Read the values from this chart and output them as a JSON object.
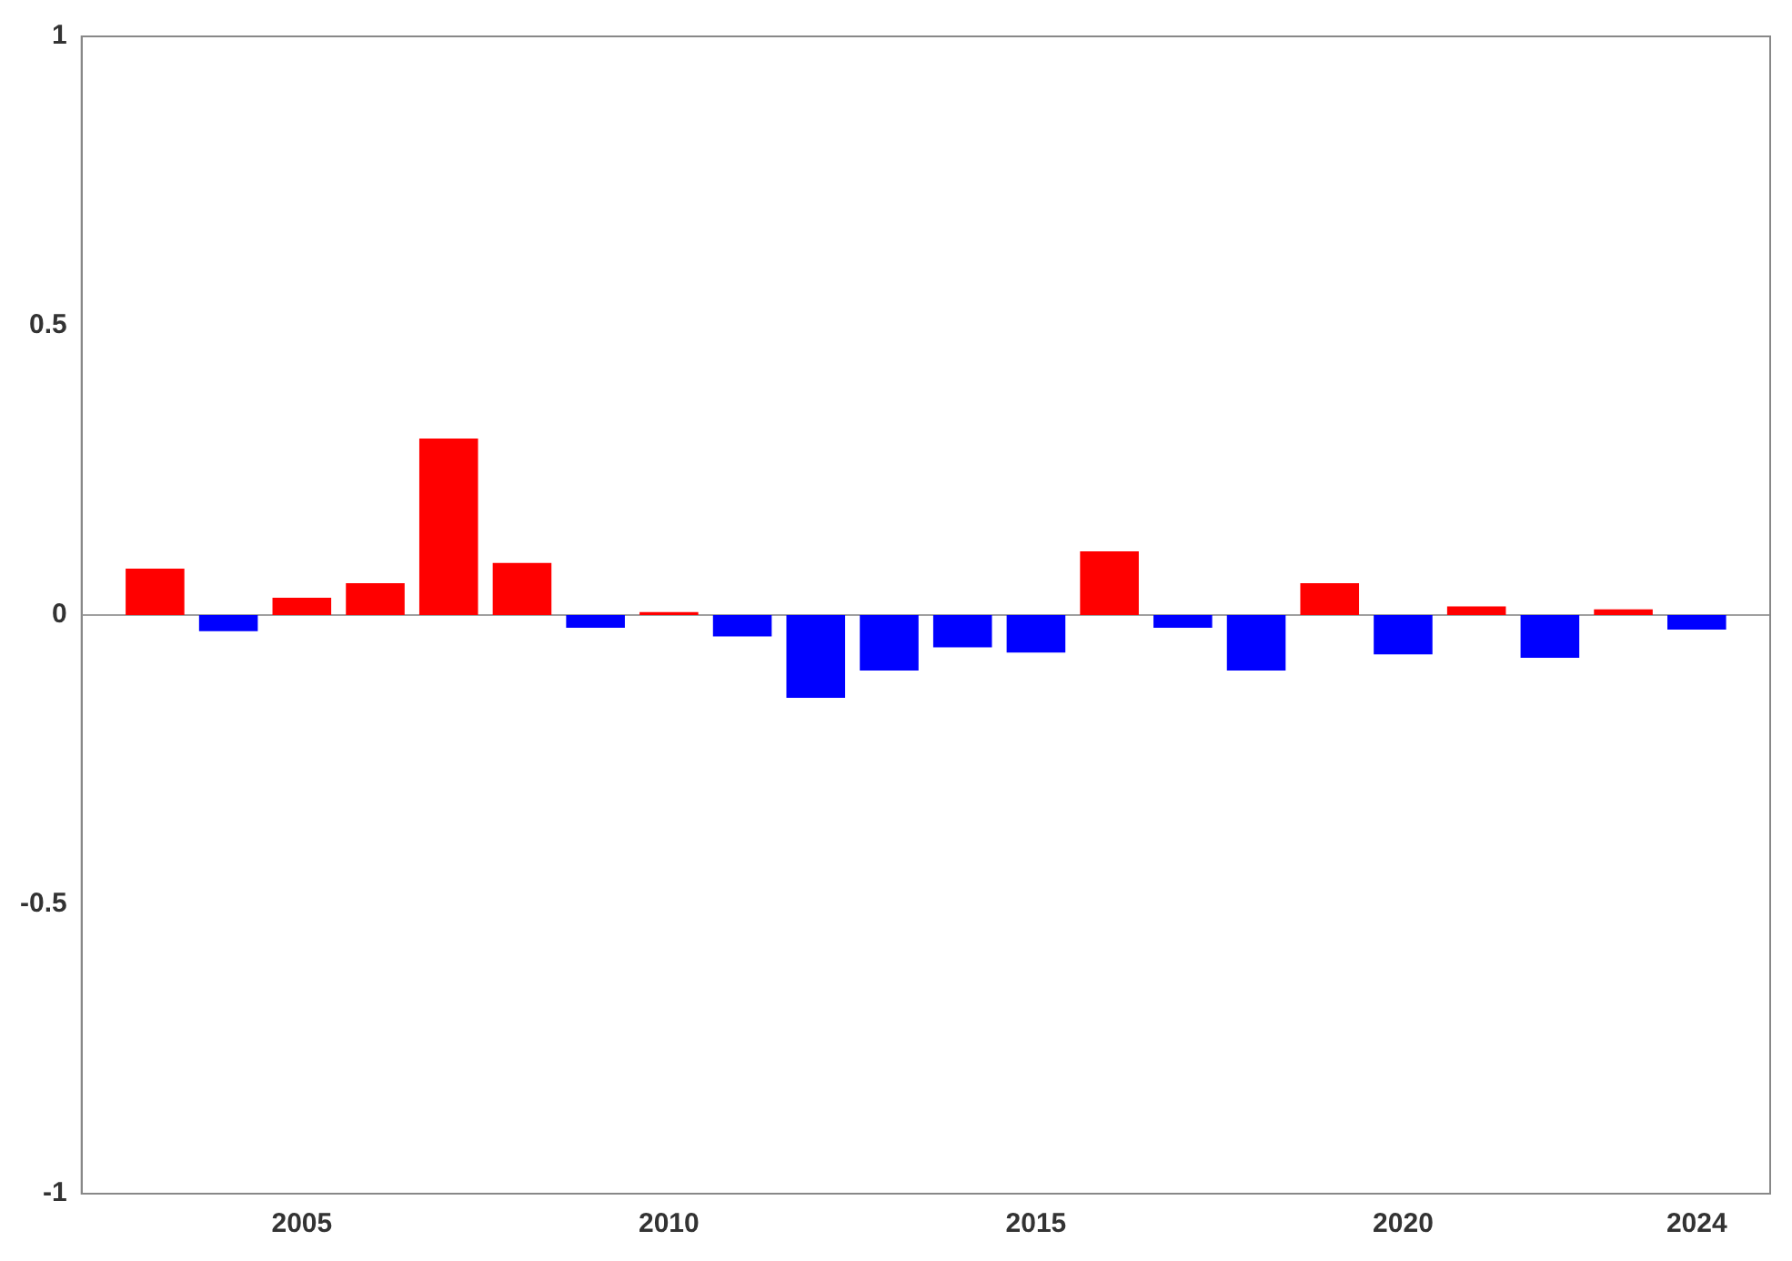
{
  "chart_data": {
    "type": "bar",
    "x": [
      2003,
      2004,
      2005,
      2006,
      2007,
      2008,
      2009,
      2010,
      2011,
      2012,
      2013,
      2014,
      2015,
      2016,
      2017,
      2018,
      2019,
      2020,
      2021,
      2022,
      2023,
      2024
    ],
    "values": [
      0.08,
      -0.028,
      0.03,
      0.055,
      0.305,
      0.09,
      -0.022,
      0.005,
      -0.037,
      -0.143,
      -0.096,
      -0.056,
      -0.065,
      0.11,
      -0.022,
      -0.096,
      0.055,
      -0.068,
      0.015,
      -0.074,
      0.01,
      -0.025
    ],
    "colors": [
      "#ff0000",
      "#0000ff",
      "#ff0000",
      "#ff0000",
      "#ff0000",
      "#ff0000",
      "#0000ff",
      "#ff0000",
      "#0000ff",
      "#0000ff",
      "#0000ff",
      "#0000ff",
      "#0000ff",
      "#ff0000",
      "#0000ff",
      "#0000ff",
      "#ff0000",
      "#0000ff",
      "#ff0000",
      "#0000ff",
      "#ff0000",
      "#0000ff"
    ],
    "xlim": [
      2002,
      2025
    ],
    "xticks": [
      2005,
      2010,
      2015,
      2020,
      2024
    ],
    "ylim": [
      -1,
      1
    ],
    "yticks": [
      -1,
      -0.5,
      0,
      0.5,
      1
    ],
    "ref_lines": [
      {
        "axis": "y",
        "value": 0,
        "color": "#a0a0a0"
      }
    ],
    "grid": false,
    "legend": false
  }
}
